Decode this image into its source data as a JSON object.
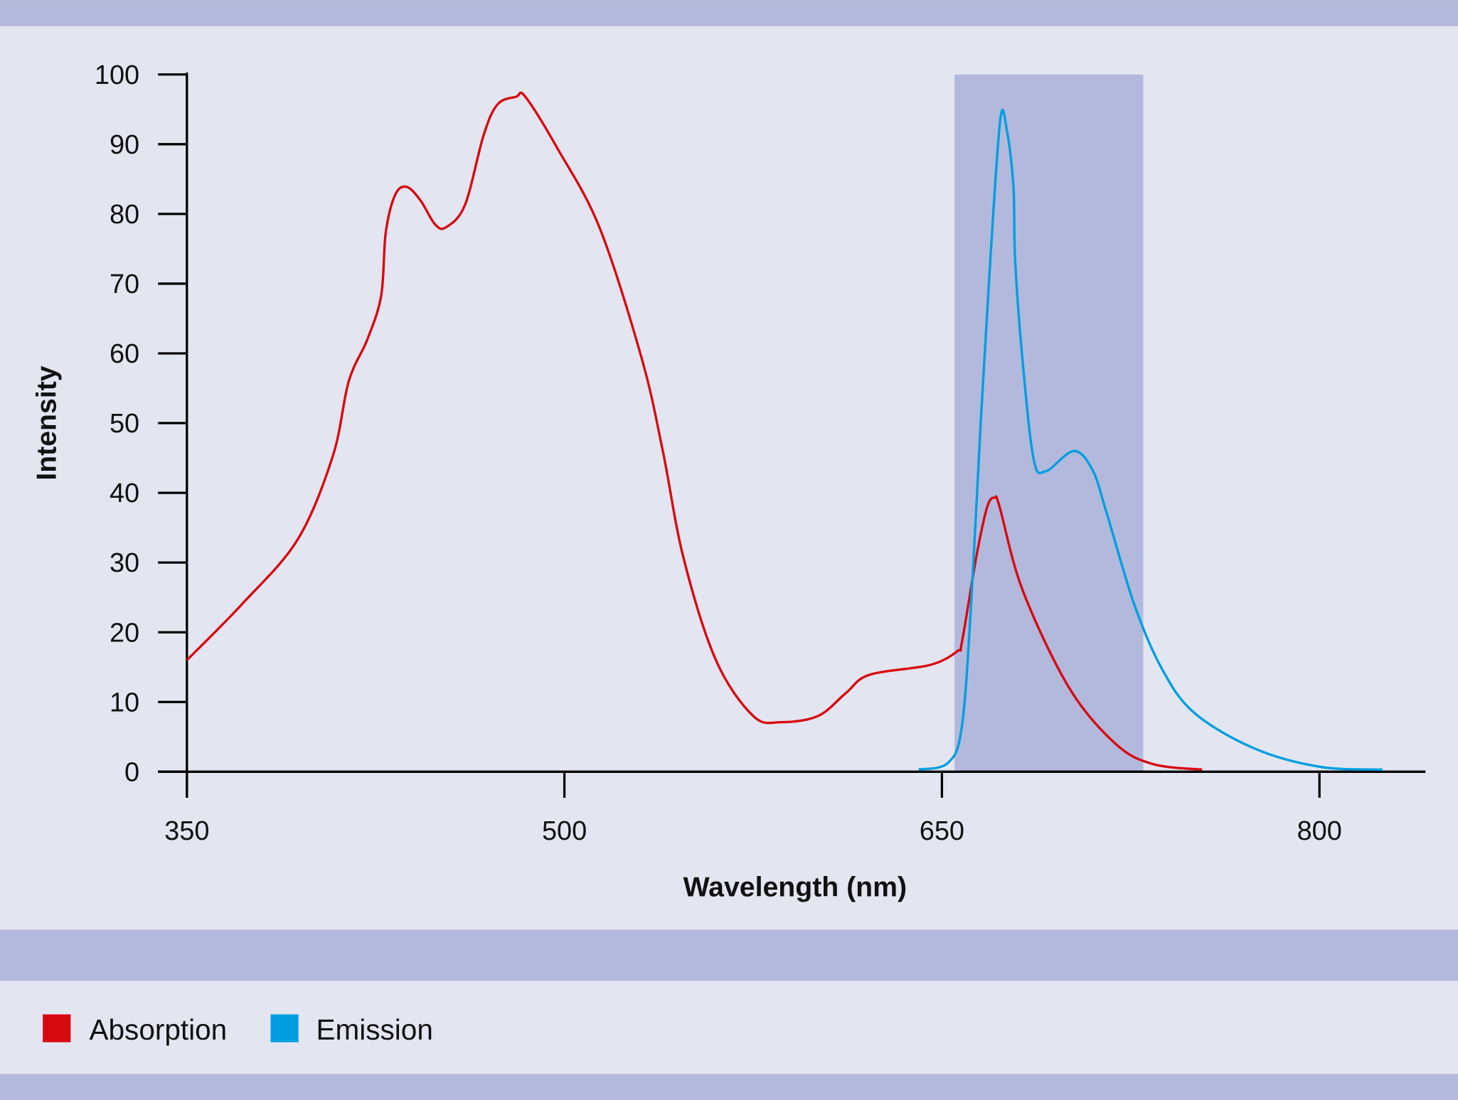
{
  "chart_data": {
    "type": "line",
    "xlabel": "Wavelength (nm)",
    "ylabel": "Intensity",
    "xlim": [
      350,
      830
    ],
    "ylim": [
      0,
      100
    ],
    "x_ticks": [
      350,
      500,
      650,
      800
    ],
    "y_ticks": [
      0,
      10,
      20,
      30,
      40,
      50,
      60,
      70,
      80,
      90,
      100
    ],
    "grid": false,
    "legend_position": "bottom-left",
    "highlight_band": {
      "x_range": [
        655,
        730
      ],
      "color": "#b3b9dc"
    },
    "series": [
      {
        "name": "Absorption",
        "color": "#d70a11",
        "points": [
          [
            350,
            16
          ],
          [
            371.8,
            24
          ],
          [
            394,
            33.3
          ],
          [
            408,
            45.3
          ],
          [
            414.3,
            56
          ],
          [
            421.7,
            62
          ],
          [
            427.2,
            68.3
          ],
          [
            429,
            77.3
          ],
          [
            432.7,
            82.7
          ],
          [
            437.2,
            83.9
          ],
          [
            442.7,
            82
          ],
          [
            448.6,
            78.5
          ],
          [
            453,
            78.1
          ],
          [
            460.5,
            81.3
          ],
          [
            467.9,
            91.3
          ],
          [
            473.4,
            95.7
          ],
          [
            480.8,
            96.8
          ],
          [
            484.5,
            96.8
          ],
          [
            497.4,
            89.3
          ],
          [
            514,
            78
          ],
          [
            530.7,
            59.3
          ],
          [
            539.1,
            46
          ],
          [
            547.3,
            30.7
          ],
          [
            560.2,
            16
          ],
          [
            575,
            8
          ],
          [
            586,
            7.1
          ],
          [
            600.8,
            8
          ],
          [
            611.9,
            11.3
          ],
          [
            621.2,
            13.9
          ],
          [
            645.2,
            15.3
          ],
          [
            656.2,
            17.3
          ],
          [
            658,
            18.7
          ],
          [
            663.6,
            30.7
          ],
          [
            668,
            38
          ],
          [
            671,
            39.3
          ],
          [
            672.9,
            38
          ],
          [
            682.1,
            26
          ],
          [
            700.6,
            12
          ],
          [
            719,
            4
          ],
          [
            733.8,
            1.1
          ],
          [
            753.4,
            0.3
          ]
        ]
      },
      {
        "name": "Emission",
        "color": "#009ee0",
        "points": [
          [
            640.7,
            0.3
          ],
          [
            652.5,
            1.3
          ],
          [
            658,
            6.7
          ],
          [
            661.8,
            25.3
          ],
          [
            665.5,
            50.7
          ],
          [
            669.2,
            73.3
          ],
          [
            673.2,
            93.6
          ],
          [
            675.8,
            92
          ],
          [
            678.4,
            84
          ],
          [
            679.1,
            73.3
          ],
          [
            682.1,
            58.7
          ],
          [
            686.5,
            44.7
          ],
          [
            691.3,
            43.1
          ],
          [
            702.4,
            46
          ],
          [
            709.8,
            43.3
          ],
          [
            715.3,
            37.3
          ],
          [
            726.4,
            24
          ],
          [
            737.5,
            14.7
          ],
          [
            750.4,
            8.4
          ],
          [
            774.4,
            3.3
          ],
          [
            800.3,
            0.7
          ],
          [
            825,
            0.3
          ]
        ]
      }
    ]
  },
  "colors": {
    "background": "#e3e6f1",
    "band": "#b3b9dc",
    "axis": "#000000"
  }
}
